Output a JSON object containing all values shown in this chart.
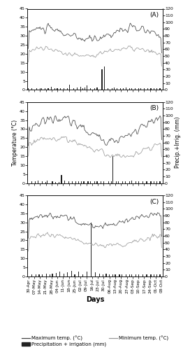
{
  "x_labels": [
    "30-Apr",
    "07-May",
    "14-May",
    "21-May",
    "28-May",
    "04-Jun",
    "11-Jun",
    "18-Jun",
    "25-Jun",
    "02-Jul",
    "09-Jul",
    "16-Jul",
    "23-Jul",
    "30-Jul",
    "06-Aug",
    "13-Aug",
    "20-Aug",
    "27-Aug",
    "03-Sep",
    "10-Sep",
    "17-Sep",
    "24-Sep",
    "01-Oct",
    "08-Oct"
  ],
  "n_points": 162,
  "panels": [
    "(A)",
    "(B)",
    "(C)"
  ],
  "temp_ylim": [
    0,
    45
  ],
  "temp_yticks": [
    0,
    5,
    10,
    15,
    20,
    25,
    30,
    35,
    40,
    45
  ],
  "precip_ylim": [
    0,
    120
  ],
  "precip_yticks": [
    0,
    10,
    20,
    30,
    40,
    50,
    60,
    70,
    80,
    90,
    100,
    110,
    120
  ],
  "max_temp_color": "#444444",
  "min_temp_color": "#999999",
  "bar_color": "#222222",
  "panel_label_fontsize": 6.5,
  "tick_fontsize": 4.5,
  "axis_label_fontsize": 5.5,
  "legend_fontsize": 5.0,
  "precip_A": [
    2,
    0,
    0,
    0,
    3,
    0,
    0,
    0,
    0,
    0,
    3,
    0,
    0,
    0,
    2,
    0,
    3,
    0,
    0,
    0,
    2,
    0,
    0,
    0,
    2,
    0,
    0,
    0,
    5,
    0,
    0,
    0,
    3,
    0,
    0,
    3,
    0,
    0,
    0,
    2,
    0,
    0,
    0,
    3,
    0,
    0,
    0,
    3,
    0,
    0,
    8,
    0,
    0,
    0,
    0,
    3,
    0,
    0,
    0,
    4,
    0,
    0,
    0,
    5,
    0,
    0,
    3,
    0,
    4,
    0,
    0,
    7,
    0,
    0,
    0,
    3,
    0,
    0,
    0,
    0,
    3,
    0,
    0,
    4,
    0,
    0,
    0,
    0,
    0,
    30,
    0,
    0,
    35,
    0,
    0,
    0,
    3,
    0,
    0,
    0,
    0,
    3,
    0,
    0,
    4,
    0,
    0,
    3,
    0,
    0,
    0,
    3,
    0,
    0,
    0,
    3,
    0,
    0,
    4,
    0,
    0,
    0,
    3,
    0,
    0,
    3,
    0,
    0,
    0,
    2,
    0,
    0,
    0,
    3,
    0,
    0,
    3,
    0,
    0,
    0,
    3,
    0,
    0,
    0,
    3,
    0,
    0,
    0,
    3,
    0,
    0,
    0,
    3,
    0,
    0,
    3,
    0,
    0,
    0,
    3,
    0,
    0
  ],
  "precip_B": [
    0,
    0,
    0,
    0,
    3,
    0,
    0,
    0,
    3,
    0,
    0,
    0,
    4,
    0,
    0,
    0,
    0,
    3,
    0,
    0,
    0,
    2,
    0,
    4,
    0,
    0,
    0,
    0,
    0,
    3,
    0,
    0,
    0,
    2,
    0,
    0,
    0,
    2,
    0,
    0,
    12,
    0,
    0,
    0,
    4,
    0,
    0,
    0,
    0,
    3,
    0,
    0,
    0,
    3,
    0,
    0,
    0,
    3,
    0,
    0,
    0,
    3,
    0,
    0,
    3,
    0,
    0,
    3,
    0,
    0,
    0,
    0,
    3,
    0,
    0,
    3,
    0,
    0,
    0,
    0,
    3,
    0,
    0,
    3,
    0,
    0,
    0,
    0,
    3,
    0,
    0,
    3,
    0,
    0,
    0,
    0,
    0,
    3,
    0,
    0,
    3,
    0,
    40,
    0,
    0,
    0,
    3,
    0,
    0,
    3,
    0,
    0,
    0,
    0,
    3,
    0,
    0,
    3,
    0,
    0,
    0,
    0,
    3,
    0,
    0,
    4,
    0,
    0,
    0,
    0,
    3,
    0,
    0,
    3,
    0,
    0,
    0,
    0,
    3,
    0,
    0,
    0,
    0,
    3,
    0,
    0,
    0,
    0,
    3,
    0,
    0,
    0,
    3,
    0,
    0,
    3,
    0,
    0,
    0,
    3,
    0,
    0
  ],
  "precip_C": [
    0,
    0,
    0,
    0,
    3,
    0,
    0,
    0,
    0,
    3,
    0,
    0,
    0,
    3,
    0,
    0,
    0,
    3,
    0,
    0,
    0,
    0,
    4,
    0,
    0,
    0,
    3,
    0,
    0,
    4,
    0,
    0,
    0,
    0,
    5,
    0,
    0,
    0,
    7,
    0,
    0,
    0,
    0,
    4,
    0,
    0,
    0,
    6,
    0,
    0,
    0,
    0,
    8,
    0,
    0,
    0,
    3,
    0,
    0,
    0,
    0,
    7,
    0,
    0,
    0,
    0,
    3,
    0,
    0,
    0,
    0,
    7,
    0,
    0,
    0,
    0,
    80,
    0,
    0,
    0,
    0,
    6,
    0,
    0,
    0,
    0,
    4,
    0,
    0,
    0,
    3,
    0,
    0,
    0,
    4,
    0,
    0,
    0,
    3,
    0,
    0,
    0,
    3,
    0,
    0,
    3,
    0,
    0,
    0,
    0,
    3,
    0,
    0,
    3,
    0,
    0,
    0,
    0,
    3,
    0,
    0,
    0,
    3,
    0,
    0,
    3,
    0,
    0,
    0,
    0,
    3,
    0,
    0,
    3,
    0,
    0,
    0,
    0,
    3,
    0,
    0,
    0,
    0,
    3,
    0,
    0,
    0,
    0,
    3,
    0,
    0,
    0,
    3,
    0,
    0,
    3,
    0,
    0,
    0,
    3,
    0,
    0
  ]
}
